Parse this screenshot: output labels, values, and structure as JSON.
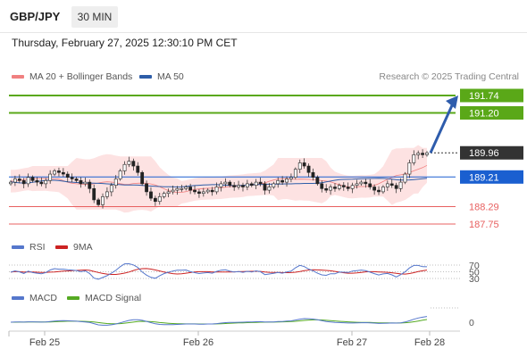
{
  "header": {
    "symbol": "GBP/JPY",
    "timeframe": "30 MIN",
    "timestamp": "Thursday, February 27, 2025 12:30:10 PM CET",
    "credit": "Research © 2025 Trading Central"
  },
  "colors": {
    "bollinger": "#f08080",
    "ma50": "#2d5da8",
    "resistance": "#5aa818",
    "support": "#e86060",
    "last_price": "#333333",
    "pivot": "#1a5fd0",
    "arrow": "#2e5cac",
    "rsi": "#5577cc",
    "rsi_ma": "#cc2222",
    "macd": "#5577cc",
    "macd_signal": "#55aa22"
  },
  "chart_data": [
    {
      "type": "candlestick",
      "name": "price",
      "legend": [
        {
          "name": "MA 20 + Bollinger Bands",
          "color": "#f08080"
        },
        {
          "name": "MA 50",
          "color": "#2d5da8"
        }
      ],
      "x_ticks": [
        "Feb 25",
        "Feb 26",
        "Feb 27",
        "Feb 28"
      ],
      "y_range": [
        187.6,
        192.0
      ],
      "levels": [
        {
          "label": "191.74",
          "value": 191.74,
          "kind": "resistance"
        },
        {
          "label": "191.20",
          "value": 191.2,
          "kind": "resistance"
        },
        {
          "label": "189.96",
          "value": 189.96,
          "kind": "last"
        },
        {
          "label": "189.21",
          "value": 189.21,
          "kind": "pivot"
        },
        {
          "label": "188.29",
          "value": 188.29,
          "kind": "support"
        },
        {
          "label": "187.75",
          "value": 187.75,
          "kind": "support"
        }
      ],
      "close": [
        189.05,
        189.15,
        189.1,
        189.0,
        189.2,
        189.1,
        189.05,
        189.0,
        189.1,
        189.3,
        189.4,
        189.35,
        189.3,
        189.2,
        189.15,
        189.1,
        189.0,
        189.05,
        188.85,
        188.5,
        188.35,
        188.6,
        188.75,
        188.95,
        189.15,
        189.4,
        189.6,
        189.7,
        189.55,
        189.35,
        189.0,
        188.75,
        188.55,
        188.45,
        188.6,
        188.7,
        188.75,
        188.8,
        188.85,
        188.85,
        188.9,
        188.8,
        188.75,
        188.7,
        188.75,
        188.8,
        188.75,
        188.9,
        189.0,
        189.05,
        188.95,
        188.9,
        188.95,
        188.9,
        189.0,
        188.95,
        189.05,
        189.0,
        188.8,
        188.9,
        189.0,
        189.1,
        189.05,
        189.15,
        189.2,
        189.45,
        189.65,
        189.55,
        189.35,
        189.2,
        189.0,
        188.85,
        188.8,
        188.9,
        188.85,
        188.95,
        188.9,
        188.85,
        188.95,
        189.0,
        189.05,
        189.0,
        188.9,
        188.8,
        188.75,
        188.9,
        189.0,
        188.95,
        188.85,
        189.05,
        189.3,
        189.65,
        189.9,
        189.95,
        189.9,
        189.96
      ]
    },
    {
      "type": "line",
      "name": "rsi",
      "legend": [
        {
          "name": "RSI",
          "color": "#5577cc"
        },
        {
          "name": "9MA",
          "color": "#cc2222"
        }
      ],
      "y_ticks": [
        "70",
        "50",
        "30"
      ]
    },
    {
      "type": "line",
      "name": "macd",
      "legend": [
        {
          "name": "MACD",
          "color": "#5577cc"
        },
        {
          "name": "MACD Signal",
          "color": "#55aa22"
        }
      ],
      "y_ticks": [
        "0"
      ]
    }
  ]
}
